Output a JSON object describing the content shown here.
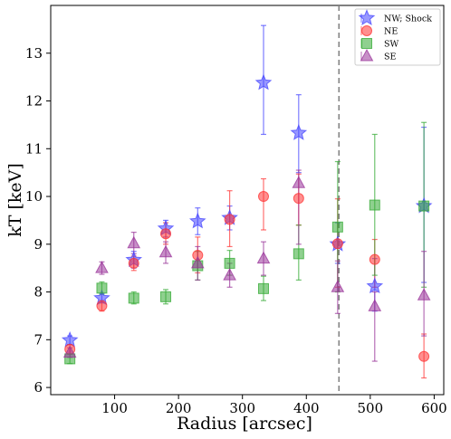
{
  "chart_data": {
    "type": "scatter",
    "xlabel": "Radius [arcsec]",
    "ylabel": "kT [keV]",
    "xlim": [
      0,
      615
    ],
    "ylim": [
      5.85,
      14.0
    ],
    "xticks": [
      100,
      200,
      300,
      400,
      500,
      600
    ],
    "yticks": [
      6,
      7,
      8,
      9,
      10,
      11,
      12,
      13
    ],
    "grid": false,
    "legend": "top-right",
    "vline": {
      "x": 451,
      "style": "dashed",
      "color": "#808080"
    },
    "series": [
      {
        "name": "NW; Shock",
        "marker": "star",
        "color": "#4444ff",
        "points": [
          {
            "x": 30,
            "y": 6.99,
            "lo": 6.9,
            "hi": 7.08
          },
          {
            "x": 80,
            "y": 7.87,
            "lo": 7.77,
            "hi": 7.97
          },
          {
            "x": 130,
            "y": 8.67,
            "lo": 8.5,
            "hi": 8.85
          },
          {
            "x": 180,
            "y": 9.33,
            "lo": 9.15,
            "hi": 9.5
          },
          {
            "x": 230,
            "y": 9.48,
            "lo": 9.2,
            "hi": 9.76
          },
          {
            "x": 280,
            "y": 9.55,
            "lo": 9.3,
            "hi": 9.8
          },
          {
            "x": 333,
            "y": 12.38,
            "lo": 11.3,
            "hi": 13.58
          },
          {
            "x": 388,
            "y": 11.33,
            "lo": 10.5,
            "hi": 12.13
          },
          {
            "x": 449,
            "y": 9.0,
            "lo": 8.6,
            "hi": 9.45
          },
          {
            "x": 507,
            "y": 8.12,
            "lo": 7.6,
            "hi": 8.7
          },
          {
            "x": 584,
            "y": 9.8,
            "lo": 8.2,
            "hi": 11.45
          }
        ]
      },
      {
        "name": "NE",
        "marker": "circle",
        "color": "#ff3333",
        "points": [
          {
            "x": 30,
            "y": 6.8,
            "lo": 6.7,
            "hi": 6.9
          },
          {
            "x": 80,
            "y": 7.71,
            "lo": 7.6,
            "hi": 7.82
          },
          {
            "x": 130,
            "y": 8.6,
            "lo": 8.45,
            "hi": 8.75
          },
          {
            "x": 180,
            "y": 9.22,
            "lo": 9.0,
            "hi": 9.45
          },
          {
            "x": 230,
            "y": 8.77,
            "lo": 8.4,
            "hi": 9.15
          },
          {
            "x": 280,
            "y": 9.52,
            "lo": 8.95,
            "hi": 10.12
          },
          {
            "x": 333,
            "y": 10.0,
            "lo": 9.3,
            "hi": 10.37
          },
          {
            "x": 388,
            "y": 9.96,
            "lo": 9.4,
            "hi": 10.47
          },
          {
            "x": 449,
            "y": 9.01,
            "lo": 8.1,
            "hi": 9.95
          },
          {
            "x": 507,
            "y": 8.68,
            "lo": 8.1,
            "hi": 9.1
          },
          {
            "x": 584,
            "y": 6.65,
            "lo": 6.2,
            "hi": 7.12
          }
        ]
      },
      {
        "name": "SW",
        "marker": "square",
        "color": "#33aa33",
        "points": [
          {
            "x": 30,
            "y": 6.6,
            "lo": 6.5,
            "hi": 6.7
          },
          {
            "x": 80,
            "y": 8.08,
            "lo": 7.95,
            "hi": 8.21
          },
          {
            "x": 130,
            "y": 7.87,
            "lo": 7.75,
            "hi": 8.0
          },
          {
            "x": 180,
            "y": 7.9,
            "lo": 7.75,
            "hi": 8.05
          },
          {
            "x": 230,
            "y": 8.55,
            "lo": 8.25,
            "hi": 8.85
          },
          {
            "x": 280,
            "y": 8.6,
            "lo": 8.35,
            "hi": 8.87
          },
          {
            "x": 333,
            "y": 8.07,
            "lo": 7.82,
            "hi": 8.33
          },
          {
            "x": 388,
            "y": 8.8,
            "lo": 8.25,
            "hi": 9.4
          },
          {
            "x": 449,
            "y": 9.36,
            "lo": 8.0,
            "hi": 10.73
          },
          {
            "x": 507,
            "y": 9.82,
            "lo": 8.35,
            "hi": 11.3
          },
          {
            "x": 584,
            "y": 9.8,
            "lo": 8.1,
            "hi": 11.55
          }
        ]
      },
      {
        "name": "SE",
        "marker": "triangle",
        "color": "#993399",
        "points": [
          {
            "x": 30,
            "y": 6.73,
            "lo": 6.63,
            "hi": 6.83
          },
          {
            "x": 80,
            "y": 8.5,
            "lo": 8.37,
            "hi": 8.63
          },
          {
            "x": 130,
            "y": 9.02,
            "lo": 8.8,
            "hi": 9.25
          },
          {
            "x": 180,
            "y": 8.83,
            "lo": 8.6,
            "hi": 9.05
          },
          {
            "x": 230,
            "y": 8.6,
            "lo": 8.25,
            "hi": 8.95
          },
          {
            "x": 280,
            "y": 8.35,
            "lo": 8.1,
            "hi": 8.6
          },
          {
            "x": 333,
            "y": 8.7,
            "lo": 8.35,
            "hi": 9.05
          },
          {
            "x": 388,
            "y": 10.28,
            "lo": 9.0,
            "hi": 10.55
          },
          {
            "x": 449,
            "y": 8.1,
            "lo": 7.55,
            "hi": 8.65
          },
          {
            "x": 507,
            "y": 7.7,
            "lo": 6.55,
            "hi": 8.0
          },
          {
            "x": 584,
            "y": 7.93,
            "lo": 7.08,
            "hi": 8.85
          }
        ]
      }
    ]
  }
}
